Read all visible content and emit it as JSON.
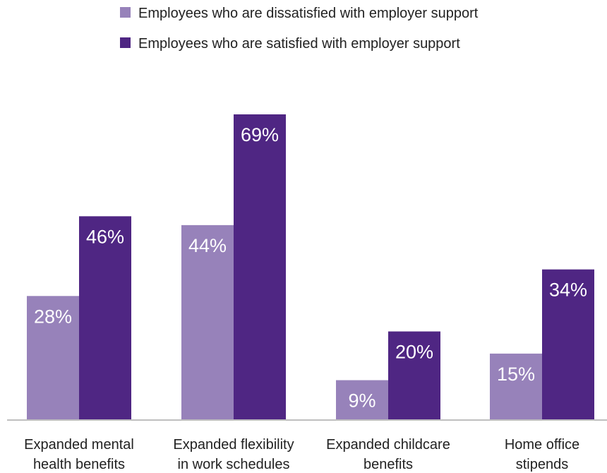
{
  "chart_data": {
    "type": "bar",
    "categories": [
      [
        "Expanded mental",
        "health benefits"
      ],
      [
        "Expanded flexibility",
        "in work schedules"
      ],
      [
        "Expanded childcare",
        "benefits"
      ],
      [
        "Home office",
        "stipends"
      ]
    ],
    "series": [
      {
        "name": "Employees who are dissatisfied with employer support",
        "values": [
          28,
          44,
          9,
          15
        ],
        "labels": [
          "28%",
          "44%",
          "9%",
          "15%"
        ],
        "color": "#9782ba"
      },
      {
        "name": "Employees who are satisfied with employer support",
        "values": [
          46,
          69,
          20,
          34
        ],
        "labels": [
          "46%",
          "69%",
          "20%",
          "34%"
        ],
        "color": "#4f2683"
      }
    ],
    "ylim": [
      0,
      69
    ],
    "legend_position": "top",
    "grid": false,
    "title": "",
    "xlabel": "",
    "ylabel": ""
  }
}
